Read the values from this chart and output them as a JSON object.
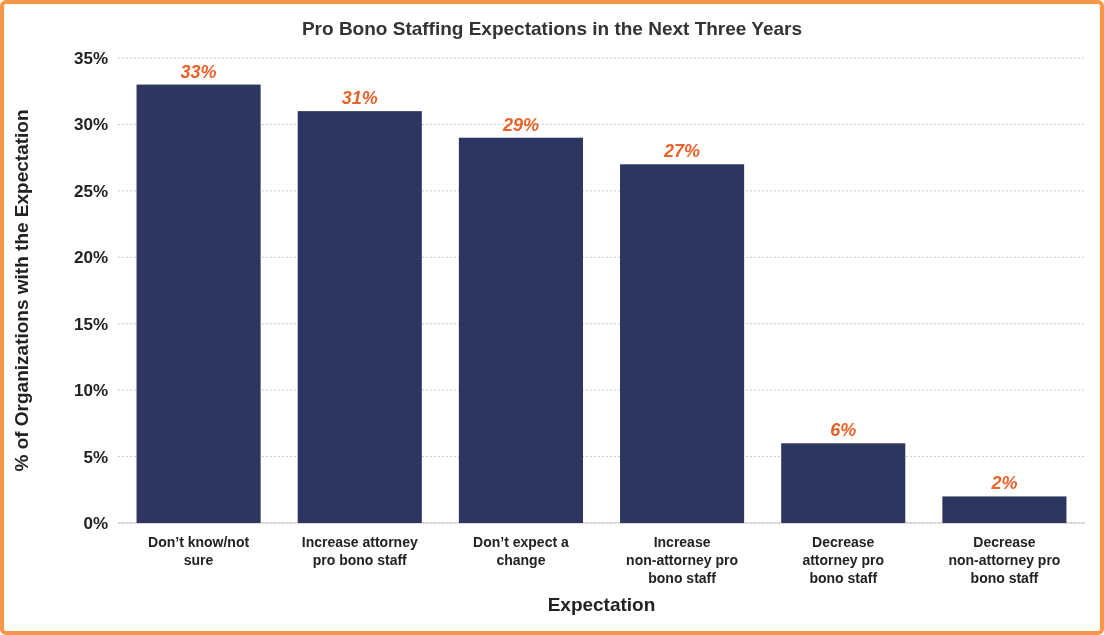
{
  "chart_data": {
    "type": "bar",
    "title": "Pro Bono Staffing Expectations in the Next Three Years",
    "xlabel": "Expectation",
    "ylabel": "% of Organizations with the Expectation",
    "categories": [
      "Don’t know/not sure",
      "Increase attorney pro bono staff",
      "Don’t expect a change",
      "Increase non-attorney pro bono staff",
      "Decrease attorney pro bono staff",
      "Decrease non-attorney pro bono staff"
    ],
    "values": [
      33,
      31,
      29,
      27,
      6,
      2
    ],
    "value_labels": [
      "33%",
      "31%",
      "29%",
      "27%",
      "6%",
      "2%"
    ],
    "color": "#2d3561",
    "ylim": [
      0,
      35
    ],
    "yticks": [
      {
        "value": 0,
        "label": "0%"
      },
      {
        "value": 5,
        "label": "5%"
      },
      {
        "value": 10,
        "label": "10%"
      },
      {
        "value": 15,
        "label": "15%"
      },
      {
        "value": 20,
        "label": "20%"
      },
      {
        "value": 25,
        "label": "25%"
      },
      {
        "value": 30,
        "label": "30%"
      },
      {
        "value": 35,
        "label": "35%"
      }
    ],
    "grid": "y"
  }
}
